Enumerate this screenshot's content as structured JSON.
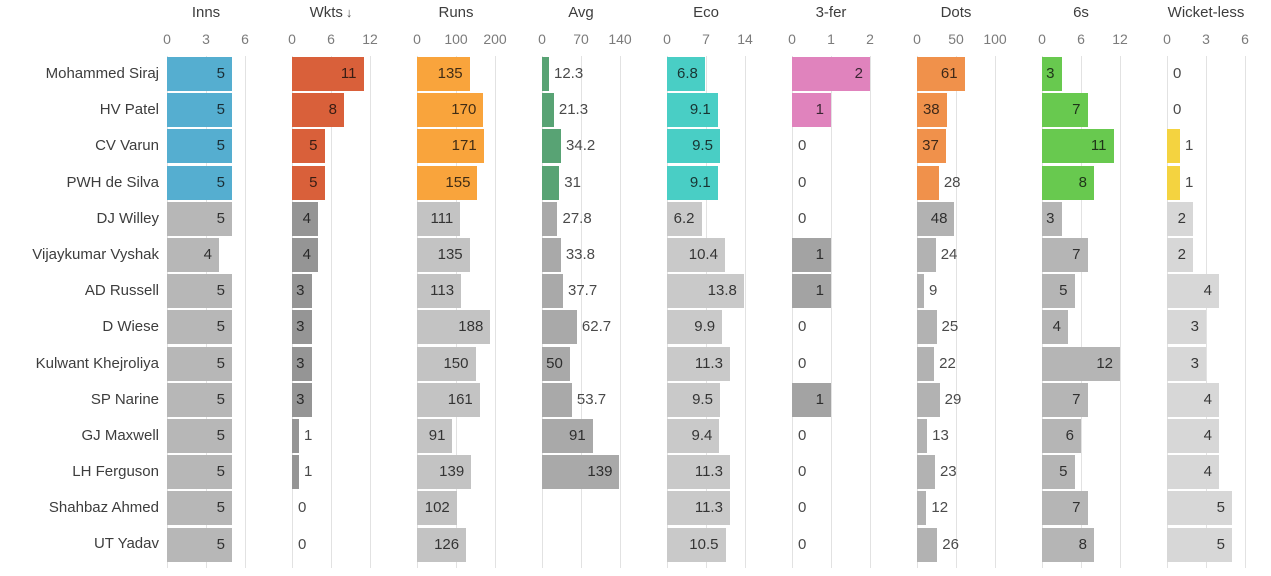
{
  "chart_data": {
    "type": "bar",
    "title": "",
    "layout": {
      "legend": "none",
      "grid": "vertical-ticks",
      "highlight_rows": 4
    },
    "sort": {
      "column": "wkts",
      "direction": "desc",
      "indicator": "↓"
    },
    "columns": [
      {
        "key": "inns",
        "label": "Inns",
        "sorted": false,
        "ticks": [
          "0",
          "3",
          "6"
        ],
        "max": 6,
        "color": "#55aed0",
        "gray": "#b7b7b7"
      },
      {
        "key": "wkts",
        "label": "Wkts",
        "sorted": true,
        "ticks": [
          "0",
          "6",
          "12"
        ],
        "max": 12,
        "color": "#d9603a",
        "gray": "#959595"
      },
      {
        "key": "runs",
        "label": "Runs",
        "sorted": false,
        "ticks": [
          "0",
          "100",
          "200"
        ],
        "max": 200,
        "color": "#f9a43c",
        "gray": "#c3c3c3"
      },
      {
        "key": "avg",
        "label": "Avg",
        "sorted": false,
        "ticks": [
          "0",
          "70",
          "140"
        ],
        "max": 140,
        "color": "#58a374",
        "gray": "#a9a9a9"
      },
      {
        "key": "eco",
        "label": "Eco",
        "sorted": false,
        "ticks": [
          "0",
          "7",
          "14"
        ],
        "max": 14,
        "color": "#49cec5",
        "gray": "#c9c9c9"
      },
      {
        "key": "threefer",
        "label": "3-fer",
        "sorted": false,
        "ticks": [
          "0",
          "1",
          "2"
        ],
        "max": 2,
        "color": "#e083bd",
        "gray": "#a3a3a3"
      },
      {
        "key": "dots",
        "label": "Dots",
        "sorted": false,
        "ticks": [
          "0",
          "50",
          "100"
        ],
        "max": 100,
        "color": "#f0914b",
        "gray": "#b2b2b2"
      },
      {
        "key": "sixes",
        "label": "6s",
        "sorted": false,
        "ticks": [
          "0",
          "6",
          "12"
        ],
        "max": 12,
        "color": "#68c94f",
        "gray": "#b5b5b5"
      },
      {
        "key": "wicketless",
        "label": "Wicket-less",
        "sorted": false,
        "ticks": [
          "0",
          "3",
          "6"
        ],
        "max": 6,
        "color": "#f4d340",
        "gray": "#d7d7d7"
      }
    ],
    "players": [
      {
        "name": "Mohammed Siraj",
        "highlighted": true,
        "values": {
          "inns": "5",
          "wkts": "11",
          "runs": "135",
          "avg": "12.3",
          "eco": "6.8",
          "threefer": "2",
          "dots": "61",
          "sixes": "3",
          "wicketless": "0"
        }
      },
      {
        "name": "HV Patel",
        "highlighted": true,
        "values": {
          "inns": "5",
          "wkts": "8",
          "runs": "170",
          "avg": "21.3",
          "eco": "9.1",
          "threefer": "1",
          "dots": "38",
          "sixes": "7",
          "wicketless": "0"
        }
      },
      {
        "name": "CV Varun",
        "highlighted": true,
        "values": {
          "inns": "5",
          "wkts": "5",
          "runs": "171",
          "avg": "34.2",
          "eco": "9.5",
          "threefer": "0",
          "dots": "37",
          "sixes": "11",
          "wicketless": "1"
        }
      },
      {
        "name": "PWH de Silva",
        "highlighted": true,
        "values": {
          "inns": "5",
          "wkts": "5",
          "runs": "155",
          "avg": "31",
          "eco": "9.1",
          "threefer": "0",
          "dots": "28",
          "sixes": "8",
          "wicketless": "1"
        }
      },
      {
        "name": "DJ Willey",
        "highlighted": false,
        "values": {
          "inns": "5",
          "wkts": "4",
          "runs": "111",
          "avg": "27.8",
          "eco": "6.2",
          "threefer": "0",
          "dots": "48",
          "sixes": "3",
          "wicketless": "2"
        }
      },
      {
        "name": "Vijaykumar Vyshak",
        "highlighted": false,
        "values": {
          "inns": "4",
          "wkts": "4",
          "runs": "135",
          "avg": "33.8",
          "eco": "10.4",
          "threefer": "1",
          "dots": "24",
          "sixes": "7",
          "wicketless": "2"
        }
      },
      {
        "name": "AD Russell",
        "highlighted": false,
        "values": {
          "inns": "5",
          "wkts": "3",
          "runs": "113",
          "avg": "37.7",
          "eco": "13.8",
          "threefer": "1",
          "dots": "9",
          "sixes": "5",
          "wicketless": "4"
        }
      },
      {
        "name": "D Wiese",
        "highlighted": false,
        "values": {
          "inns": "5",
          "wkts": "3",
          "runs": "188",
          "avg": "62.7",
          "eco": "9.9",
          "threefer": "0",
          "dots": "25",
          "sixes": "4",
          "wicketless": "3"
        }
      },
      {
        "name": "Kulwant Khejroliya",
        "highlighted": false,
        "values": {
          "inns": "5",
          "wkts": "3",
          "runs": "150",
          "avg": "50",
          "eco": "11.3",
          "threefer": "0",
          "dots": "22",
          "sixes": "12",
          "wicketless": "3"
        }
      },
      {
        "name": "SP Narine",
        "highlighted": false,
        "values": {
          "inns": "5",
          "wkts": "3",
          "runs": "161",
          "avg": "53.7",
          "eco": "9.5",
          "threefer": "1",
          "dots": "29",
          "sixes": "7",
          "wicketless": "4"
        }
      },
      {
        "name": "GJ Maxwell",
        "highlighted": false,
        "values": {
          "inns": "5",
          "wkts": "1",
          "runs": "91",
          "avg": "91",
          "eco": "9.4",
          "threefer": "0",
          "dots": "13",
          "sixes": "6",
          "wicketless": "4"
        }
      },
      {
        "name": "LH Ferguson",
        "highlighted": false,
        "values": {
          "inns": "5",
          "wkts": "1",
          "runs": "139",
          "avg": "139",
          "eco": "11.3",
          "threefer": "0",
          "dots": "23",
          "sixes": "5",
          "wicketless": "4"
        }
      },
      {
        "name": "Shahbaz Ahmed",
        "highlighted": false,
        "values": {
          "inns": "5",
          "wkts": "0",
          "runs": "102",
          "avg": "",
          "eco": "11.3",
          "threefer": "0",
          "dots": "12",
          "sixes": "7",
          "wicketless": "5"
        }
      },
      {
        "name": "UT Yadav",
        "highlighted": false,
        "values": {
          "inns": "5",
          "wkts": "0",
          "runs": "126",
          "avg": "",
          "eco": "10.5",
          "threefer": "0",
          "dots": "26",
          "sixes": "8",
          "wicketless": "5"
        }
      }
    ]
  }
}
